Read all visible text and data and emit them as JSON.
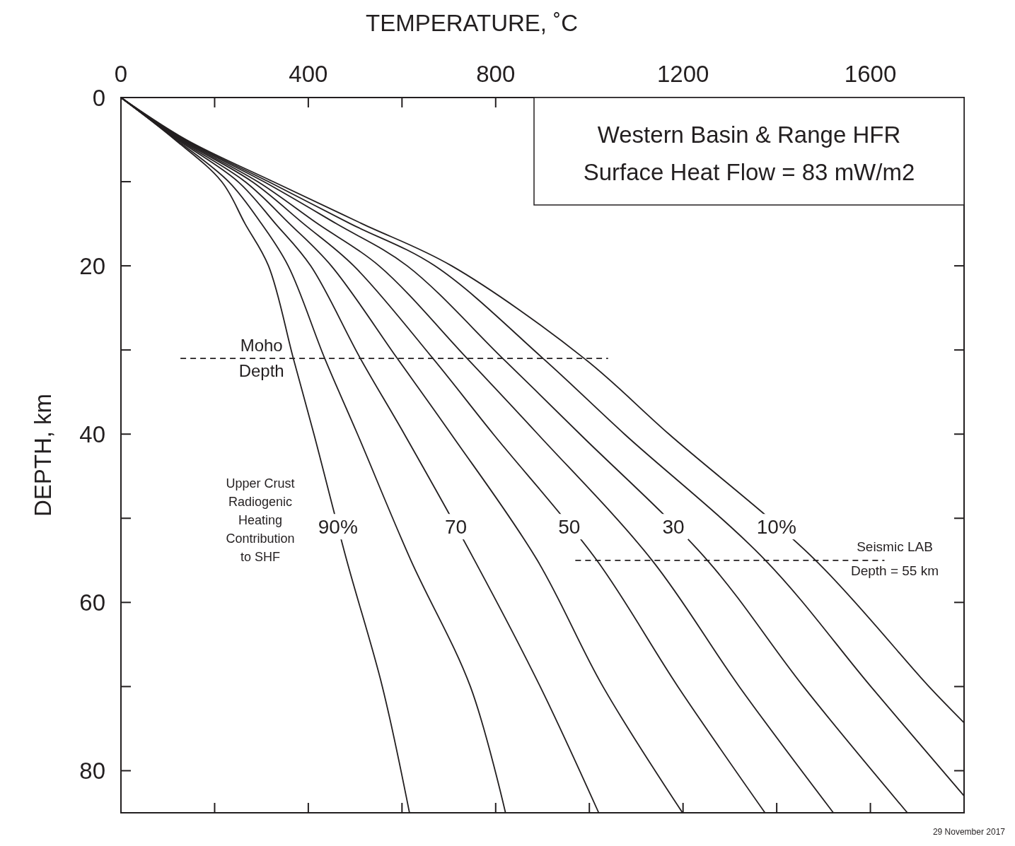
{
  "chart_data": {
    "type": "line",
    "title": "Western Basin & Range HFR",
    "subtitle": "Surface Heat Flow = 83 mW/m2",
    "xlabel": "TEMPERATURE, ˚C",
    "ylabel": "DEPTH, km",
    "xlim": [
      0,
      1800
    ],
    "ylim": [
      85,
      0
    ],
    "xticks": [
      0,
      {
        "value": 200,
        "label": null
      },
      400,
      {
        "value": 600,
        "label": null
      },
      800,
      {
        "value": 1000,
        "label": null
      },
      1200,
      {
        "value": 1400,
        "label": null
      },
      1600,
      {
        "value": 1800,
        "label": null
      }
    ],
    "yticks": [
      0,
      {
        "value": 10,
        "label": null
      },
      20,
      {
        "value": 30,
        "label": null
      },
      40,
      {
        "value": 50,
        "label": null
      },
      60,
      {
        "value": 70,
        "label": null
      },
      80
    ],
    "grid": false,
    "marker": "none",
    "line_style": "solid",
    "series": [
      {
        "name": "90%",
        "color": "#231f20",
        "x": [
          0,
          115,
          215,
          265,
          315,
          368,
          412,
          482,
          558,
          616
        ],
        "values": [
          0,
          5,
          10,
          15,
          20,
          31,
          40,
          55,
          70,
          85
        ]
      },
      {
        "color": "#231f20",
        "x": [
          0,
          118,
          230,
          300,
          357,
          435,
          505,
          619,
          746,
          821
        ],
        "values": [
          0,
          5,
          10,
          15,
          20,
          31,
          40,
          55,
          70,
          85
        ]
      },
      {
        "name": "70",
        "color": "#231f20",
        "x": [
          0,
          121,
          250,
          330,
          405,
          511,
          605,
          755,
          895,
          1020
        ],
        "values": [
          0,
          5,
          10,
          15,
          20,
          31,
          40,
          55,
          70,
          85
        ]
      },
      {
        "color": "#231f20",
        "x": [
          0,
          124,
          265,
          360,
          449,
          590,
          705,
          889,
          1029,
          1199
        ],
        "values": [
          0,
          5,
          10,
          15,
          20,
          31,
          40,
          55,
          70,
          85
        ]
      },
      {
        "name": "50",
        "color": "#231f20",
        "x": [
          0,
          127,
          280,
          390,
          497,
          666,
          795,
          1016,
          1189,
          1375
        ],
        "values": [
          0,
          5,
          10,
          15,
          20,
          31,
          40,
          55,
          70,
          85
        ]
      },
      {
        "color": "#231f20",
        "x": [
          0,
          130,
          292,
          420,
          551,
          739,
          890,
          1134,
          1320,
          1521
        ],
        "values": [
          0,
          5,
          10,
          15,
          20,
          31,
          40,
          55,
          70,
          85
        ]
      },
      {
        "name": "30",
        "color": "#231f20",
        "x": [
          0,
          133,
          305,
          460,
          611,
          815,
          980,
          1252,
          1457,
          1679
        ],
        "values": [
          0,
          5,
          10,
          15,
          20,
          31,
          40,
          55,
          70,
          85
        ]
      },
      {
        "color": "#231f20",
        "x": [
          0,
          136,
          315,
          490,
          670,
          901,
          1075,
          1376,
          1601,
          1800
        ],
        "values": [
          0,
          5,
          10,
          15,
          20,
          31,
          40,
          55,
          70,
          83
        ]
      },
      {
        "name": "10%",
        "color": "#231f20",
        "x": [
          0,
          139,
          325,
          515,
          706,
          989,
          1170,
          1483,
          1725,
          1800
        ],
        "values": [
          0,
          5,
          10,
          15,
          20,
          31,
          40,
          55,
          70,
          74.3
        ]
      },
      {
        "color": "#231f20",
        "line_style": "dashed",
        "x": [
          127,
          1040
        ],
        "values": [
          31,
          31
        ]
      },
      {
        "color": "#231f20",
        "line_style": "dashed",
        "x": [
          970,
          1630
        ],
        "values": [
          55,
          55
        ]
      }
    ],
    "annotations": [
      {
        "text": "Moho\nDepth",
        "x": 300,
        "y": 31
      },
      "Seismic LAB\nDepth = 55 km",
      "Upper Crust\nRadiogenic\nHeating\nContribution\nto SHF",
      "29 November 2017"
    ]
  }
}
